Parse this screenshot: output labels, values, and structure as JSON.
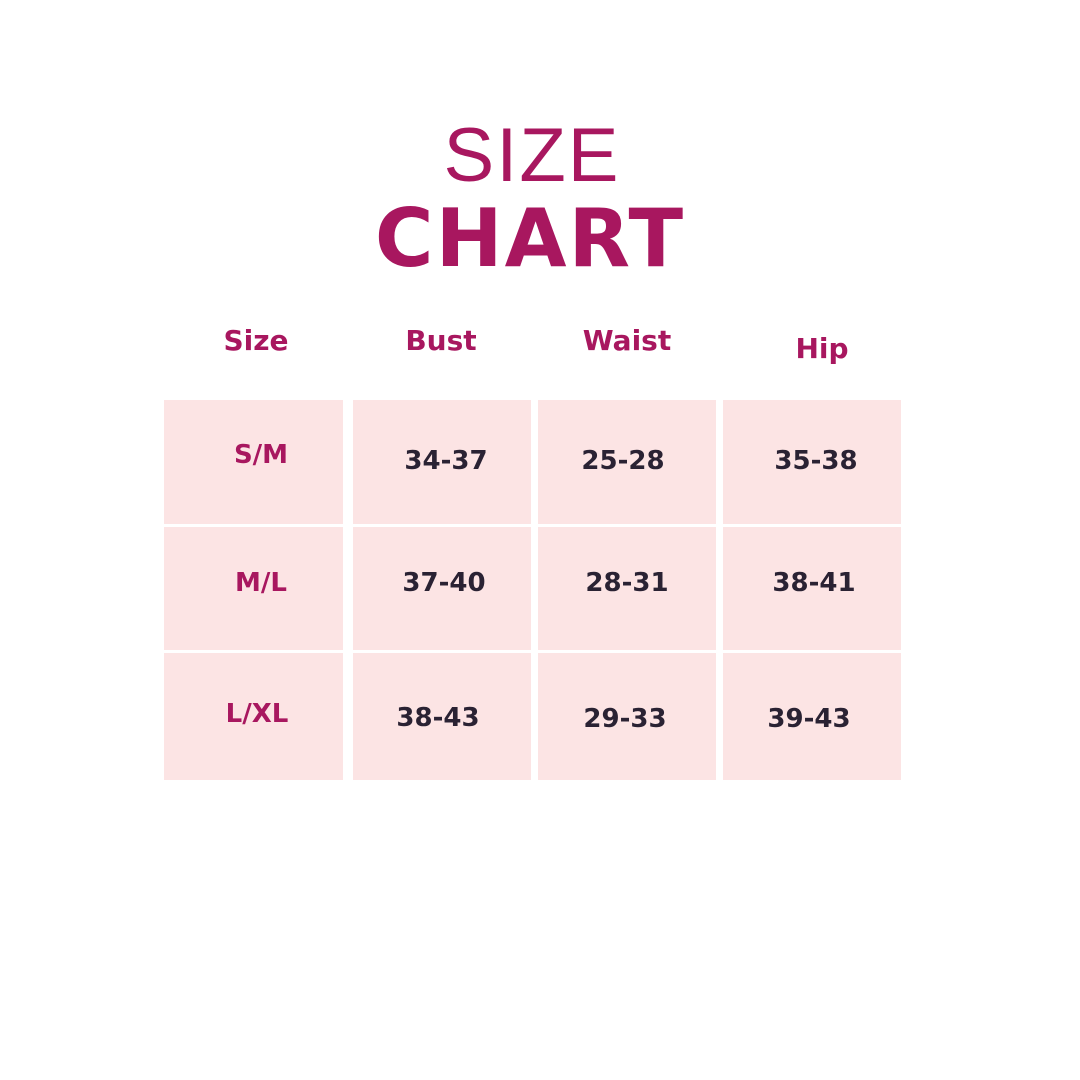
{
  "title": {
    "line1": "SIZE",
    "line2": "CHART"
  },
  "colors": {
    "accent": "#a8175f",
    "cell_background": "#fce4e4",
    "value_text": "#2a2233"
  },
  "chart_data": {
    "type": "table",
    "title": "SIZE CHART",
    "columns": [
      "Size",
      "Bust",
      "Waist",
      "Hip"
    ],
    "rows": [
      [
        "S/M",
        "34-37",
        "25-28",
        "35-38"
      ],
      [
        "M/L",
        "37-40",
        "28-31",
        "38-41"
      ],
      [
        "L/XL",
        "38-43",
        "29-33",
        "39-43"
      ]
    ]
  }
}
